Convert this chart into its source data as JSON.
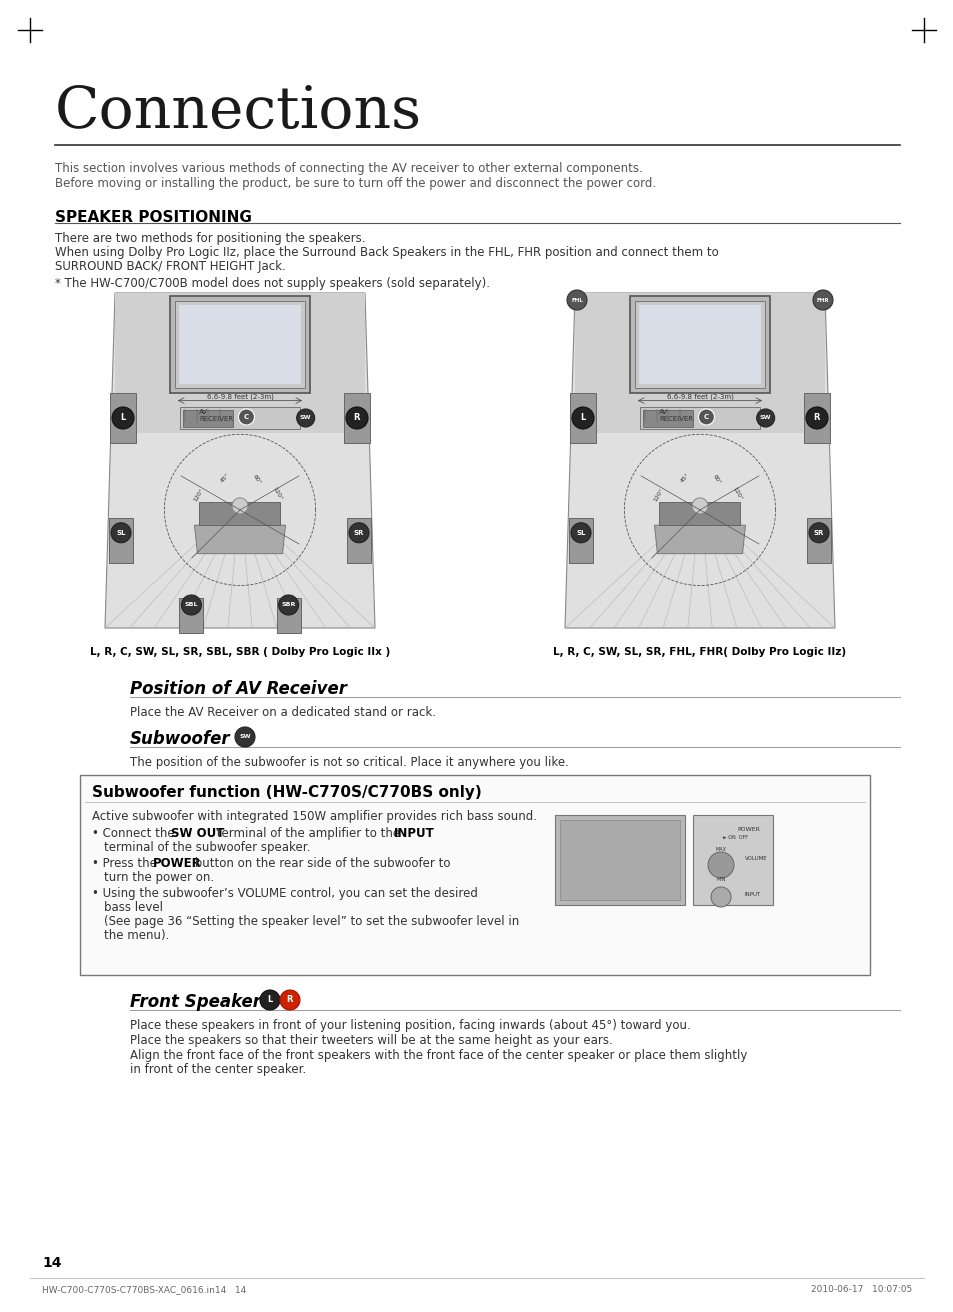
{
  "title": "Connections",
  "subtitle_line1": "This section involves various methods of connecting the AV receiver to other external components.",
  "subtitle_line2": "Before moving or installing the product, be sure to turn off the power and disconnect the power cord.",
  "section1_title": "SPEAKER POSITIONING",
  "section1_p1": "There are two methods for positioning the speakers.",
  "section1_p2a": "When using Dolby Pro Logic IIz, place the Surround Back Speakers in the FHL, FHR position and connect them to",
  "section1_p2b": "SURROUND BACK/ FRONT HEIGHT Jack.",
  "section1_note": "* The HW-C700/C700B model does not supply speakers (sold separately).",
  "diagram1_caption": "L, R, C, SW, SL, SR, SBL, SBR ( Dolby Pro Logic IIx )",
  "diagram2_caption": "L, R, C, SW, SL, SR, FHL, FHR( Dolby Pro Logic IIz)",
  "section2_title": "Position of AV Receiver",
  "section2_text": "Place the AV Receiver on a dedicated stand or rack.",
  "section3_title": "Subwoofer",
  "section3_text": "The position of the subwoofer is not so critical. Place it anywhere you like.",
  "box_title": "Subwoofer function (HW-C770S/C770BS only)",
  "box_text1": "Active subwoofer with integrated 150W amplifier provides rich bass sound.",
  "box_bullet1": "Connect the  SW OUT  terminal of the amplifier to the  INPUT\nterminal of the subwoofer speaker.",
  "box_bullet2": "Press the  POWER  button on the rear side of the subwoofer to\nturn the power on.",
  "box_bullet3": "Using the subwoofer’s VOLUME control, you can set the desired\nbass level\n(See page 36 “Setting the speaker level” to set the subwoofer level in\nthe menu).",
  "section4_title": "Front Speakers",
  "section4_text1": "Place these speakers in front of your listening position, facing inwards (about 45°) toward you.",
  "section4_text2": "Place the speakers so that their tweeters will be at the same height as your ears.",
  "section4_text3": "Align the front face of the front speakers with the front face of the center speaker or place them slightly",
  "section4_text4": "in front of the center speaker.",
  "footer_left": "HW-C700-C770S-C770BS-XAC_0616.in14   14",
  "footer_right": "2010-06-17   10:07:05",
  "page_number": "14",
  "bg_color": "#ffffff"
}
